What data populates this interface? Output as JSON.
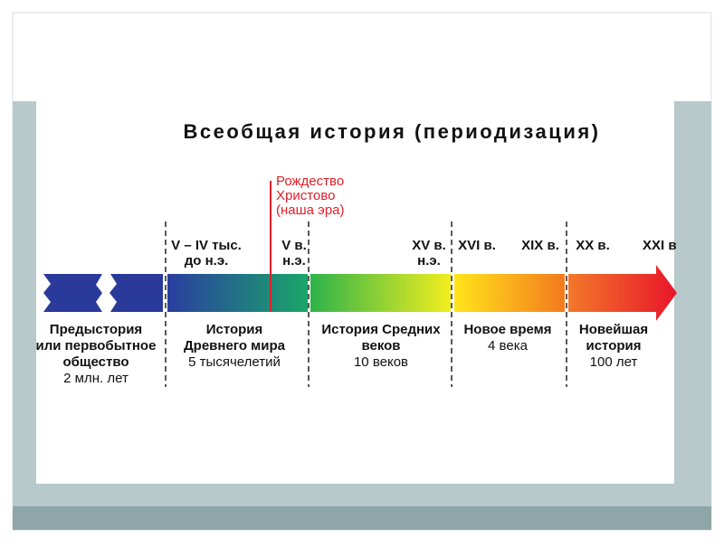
{
  "title": "Всеобщая история (периодизация)",
  "christ": [
    "Рождество",
    "Христово",
    "(наша эра)"
  ],
  "markers": [
    {
      "lines": [
        "V – IV тыс.",
        "до н.э."
      ]
    },
    {
      "lines": [
        "V в.",
        "н.э."
      ]
    },
    {
      "lines": [
        "XV в.",
        "н.э."
      ]
    },
    {
      "lines": [
        "XVI в."
      ]
    },
    {
      "lines": [
        "XIX в."
      ]
    },
    {
      "lines": [
        "XX в."
      ]
    },
    {
      "lines": [
        "XXI в"
      ]
    }
  ],
  "periods": [
    {
      "name": [
        "Предыстория",
        "или первобытное",
        "общество"
      ],
      "duration": "2 млн. лет"
    },
    {
      "name": [
        "История",
        "Древнего мира"
      ],
      "duration": "5 тысячелетий"
    },
    {
      "name": [
        "История Средних",
        "веков"
      ],
      "duration": "10 веков"
    },
    {
      "name": [
        "Новое время"
      ],
      "duration": "4 века"
    },
    {
      "name": [
        "Новейшая",
        "история"
      ],
      "duration": "100 лет"
    }
  ]
}
